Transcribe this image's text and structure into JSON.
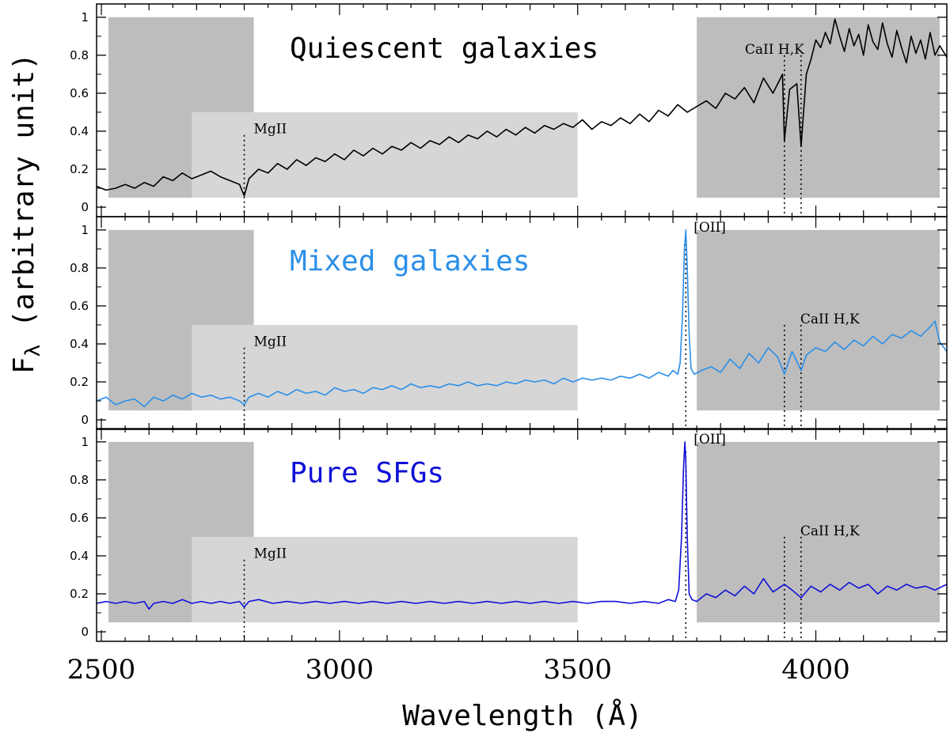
{
  "chart_data": {
    "type": "line",
    "xlabel": "Wavelength (Å)",
    "ylabel": "F",
    "ylabel_subscript": "λ",
    "ylabel_rest": " (arbitrary unit)",
    "xlim": [
      2490,
      4275
    ],
    "ylim": [
      -0.05,
      1.07
    ],
    "x_ticks": [
      2500,
      3000,
      3500,
      4000
    ],
    "x_tick_labels": [
      "2500",
      "3000",
      "3500",
      "4000"
    ],
    "y_ticks": [
      0,
      0.2,
      0.4,
      0.6,
      0.8,
      1
    ],
    "y_tick_labels": [
      "0",
      "0.2",
      "0.4",
      "0.6",
      "0.8",
      "1"
    ],
    "shaded_regions": [
      {
        "x0": 2515,
        "x1": 2820,
        "y0": 0.05,
        "y1": 1.0,
        "shade": "dark"
      },
      {
        "x0": 2690,
        "x1": 3500,
        "y0": 0.05,
        "y1": 0.5,
        "shade": "light"
      },
      {
        "x0": 3750,
        "x1": 4260,
        "y0": 0.05,
        "y1": 1.0,
        "shade": "dark"
      }
    ],
    "panels": [
      {
        "title": "Quiescent galaxies",
        "color": "#000000",
        "markers": [
          {
            "label": "MgII",
            "x": 2800,
            "y_top": 0.38
          },
          {
            "label": "CaII H,K",
            "x": 3934,
            "y_top": 0.8
          },
          {
            "label": "",
            "x": 3969,
            "y_top": 0.8
          }
        ],
        "series": {
          "name": "Quiescent galaxies",
          "x": [
            2490,
            2510,
            2530,
            2550,
            2570,
            2590,
            2610,
            2630,
            2650,
            2670,
            2690,
            2710,
            2730,
            2750,
            2770,
            2790,
            2800,
            2810,
            2830,
            2850,
            2870,
            2890,
            2910,
            2930,
            2950,
            2970,
            2990,
            3010,
            3030,
            3050,
            3070,
            3090,
            3110,
            3130,
            3150,
            3170,
            3190,
            3210,
            3230,
            3250,
            3270,
            3290,
            3310,
            3330,
            3350,
            3370,
            3390,
            3410,
            3430,
            3450,
            3470,
            3490,
            3510,
            3530,
            3550,
            3570,
            3590,
            3610,
            3630,
            3650,
            3670,
            3690,
            3710,
            3730,
            3750,
            3770,
            3790,
            3810,
            3830,
            3850,
            3870,
            3890,
            3910,
            3930,
            3934,
            3945,
            3960,
            3969,
            3980,
            3990,
            4000,
            4010,
            4020,
            4030,
            4040,
            4050,
            4060,
            4070,
            4080,
            4090,
            4100,
            4110,
            4120,
            4130,
            4140,
            4150,
            4160,
            4170,
            4180,
            4190,
            4200,
            4210,
            4220,
            4230,
            4240,
            4250,
            4260,
            4275
          ],
          "y": [
            0.11,
            0.09,
            0.1,
            0.12,
            0.1,
            0.13,
            0.11,
            0.16,
            0.14,
            0.18,
            0.15,
            0.17,
            0.19,
            0.16,
            0.14,
            0.12,
            0.06,
            0.15,
            0.2,
            0.18,
            0.23,
            0.2,
            0.25,
            0.22,
            0.26,
            0.24,
            0.28,
            0.25,
            0.3,
            0.27,
            0.31,
            0.28,
            0.32,
            0.3,
            0.34,
            0.31,
            0.35,
            0.33,
            0.37,
            0.34,
            0.38,
            0.36,
            0.4,
            0.37,
            0.41,
            0.38,
            0.42,
            0.39,
            0.43,
            0.41,
            0.44,
            0.42,
            0.46,
            0.41,
            0.45,
            0.43,
            0.47,
            0.44,
            0.49,
            0.45,
            0.51,
            0.48,
            0.54,
            0.5,
            0.53,
            0.56,
            0.52,
            0.6,
            0.57,
            0.63,
            0.55,
            0.68,
            0.6,
            0.7,
            0.35,
            0.62,
            0.65,
            0.32,
            0.7,
            0.78,
            0.88,
            0.84,
            0.92,
            0.86,
            0.99,
            0.9,
            0.82,
            0.94,
            0.85,
            0.91,
            0.8,
            0.96,
            0.87,
            0.83,
            0.97,
            0.86,
            0.79,
            0.93,
            0.84,
            0.76,
            0.9,
            0.81,
            0.88,
            0.78,
            0.92,
            0.8,
            0.85,
            0.79
          ]
        }
      },
      {
        "title": "Mixed galaxies",
        "color": "#2b8fe8",
        "markers": [
          {
            "label": "MgII",
            "x": 2800,
            "y_top": 0.38
          },
          {
            "label": "[OII]",
            "x": 3727,
            "y_top": 0.95
          },
          {
            "label": "CaII H,K",
            "x": 3934,
            "y_top": 0.5
          },
          {
            "label": "",
            "x": 3969,
            "y_top": 0.5
          }
        ],
        "series": {
          "name": "Mixed galaxies",
          "x": [
            2490,
            2510,
            2530,
            2550,
            2570,
            2590,
            2610,
            2630,
            2650,
            2670,
            2690,
            2710,
            2730,
            2750,
            2770,
            2790,
            2800,
            2810,
            2830,
            2850,
            2870,
            2890,
            2910,
            2930,
            2950,
            2970,
            2990,
            3010,
            3030,
            3050,
            3070,
            3090,
            3110,
            3130,
            3150,
            3170,
            3190,
            3210,
            3230,
            3250,
            3270,
            3290,
            3310,
            3330,
            3350,
            3370,
            3390,
            3410,
            3430,
            3450,
            3470,
            3490,
            3510,
            3530,
            3550,
            3570,
            3590,
            3610,
            3630,
            3650,
            3670,
            3690,
            3700,
            3710,
            3715,
            3720,
            3724,
            3727,
            3730,
            3734,
            3738,
            3745,
            3760,
            3780,
            3800,
            3820,
            3840,
            3860,
            3880,
            3900,
            3920,
            3934,
            3950,
            3969,
            3980,
            4000,
            4020,
            4040,
            4060,
            4080,
            4100,
            4120,
            4140,
            4160,
            4180,
            4200,
            4220,
            4240,
            4250,
            4260,
            4275
          ],
          "y": [
            0.1,
            0.12,
            0.08,
            0.1,
            0.11,
            0.07,
            0.12,
            0.1,
            0.13,
            0.11,
            0.14,
            0.12,
            0.13,
            0.11,
            0.12,
            0.1,
            0.08,
            0.12,
            0.14,
            0.12,
            0.15,
            0.13,
            0.16,
            0.14,
            0.15,
            0.13,
            0.17,
            0.15,
            0.16,
            0.14,
            0.17,
            0.16,
            0.18,
            0.16,
            0.19,
            0.17,
            0.18,
            0.17,
            0.19,
            0.18,
            0.2,
            0.18,
            0.19,
            0.18,
            0.2,
            0.19,
            0.21,
            0.2,
            0.21,
            0.19,
            0.22,
            0.2,
            0.22,
            0.21,
            0.22,
            0.21,
            0.23,
            0.22,
            0.24,
            0.22,
            0.25,
            0.23,
            0.26,
            0.24,
            0.3,
            0.55,
            0.9,
            1.0,
            0.8,
            0.45,
            0.27,
            0.24,
            0.26,
            0.28,
            0.25,
            0.32,
            0.27,
            0.35,
            0.3,
            0.38,
            0.33,
            0.24,
            0.36,
            0.26,
            0.34,
            0.38,
            0.36,
            0.41,
            0.37,
            0.42,
            0.39,
            0.44,
            0.4,
            0.45,
            0.43,
            0.47,
            0.44,
            0.49,
            0.52,
            0.41,
            0.36
          ]
        }
      },
      {
        "title": "Pure SFGs",
        "color": "#1010d8",
        "markers": [
          {
            "label": "MgII",
            "x": 2800,
            "y_top": 0.38
          },
          {
            "label": "[OII]",
            "x": 3727,
            "y_top": 0.95
          },
          {
            "label": "CaII H,K",
            "x": 3934,
            "y_top": 0.5
          },
          {
            "label": "",
            "x": 3969,
            "y_top": 0.5
          }
        ],
        "series": {
          "name": "Pure SFGs",
          "x": [
            2490,
            2510,
            2530,
            2550,
            2570,
            2590,
            2600,
            2610,
            2630,
            2650,
            2670,
            2690,
            2710,
            2730,
            2750,
            2770,
            2790,
            2800,
            2810,
            2830,
            2860,
            2890,
            2920,
            2950,
            2980,
            3010,
            3040,
            3070,
            3100,
            3130,
            3160,
            3190,
            3220,
            3250,
            3280,
            3310,
            3340,
            3370,
            3400,
            3430,
            3460,
            3490,
            3520,
            3550,
            3580,
            3610,
            3640,
            3670,
            3690,
            3705,
            3712,
            3718,
            3722,
            3725,
            3727,
            3730,
            3734,
            3740,
            3750,
            3770,
            3790,
            3810,
            3830,
            3850,
            3870,
            3890,
            3910,
            3934,
            3950,
            3969,
            3990,
            4010,
            4030,
            4050,
            4070,
            4090,
            4110,
            4130,
            4150,
            4170,
            4190,
            4210,
            4230,
            4250,
            4275
          ],
          "y": [
            0.15,
            0.16,
            0.15,
            0.16,
            0.15,
            0.16,
            0.12,
            0.15,
            0.16,
            0.15,
            0.17,
            0.15,
            0.16,
            0.15,
            0.16,
            0.15,
            0.16,
            0.13,
            0.16,
            0.17,
            0.15,
            0.16,
            0.15,
            0.16,
            0.15,
            0.16,
            0.15,
            0.16,
            0.15,
            0.16,
            0.15,
            0.16,
            0.15,
            0.16,
            0.15,
            0.16,
            0.15,
            0.16,
            0.15,
            0.16,
            0.15,
            0.16,
            0.15,
            0.16,
            0.16,
            0.15,
            0.16,
            0.15,
            0.17,
            0.16,
            0.22,
            0.5,
            0.85,
            1.0,
            0.9,
            0.5,
            0.2,
            0.17,
            0.16,
            0.2,
            0.18,
            0.22,
            0.19,
            0.24,
            0.2,
            0.28,
            0.21,
            0.25,
            0.22,
            0.18,
            0.24,
            0.21,
            0.25,
            0.22,
            0.26,
            0.23,
            0.25,
            0.2,
            0.24,
            0.22,
            0.25,
            0.23,
            0.24,
            0.22,
            0.25
          ]
        }
      }
    ]
  },
  "colors": {
    "shade_dark": "#bdbdbd",
    "shade_light": "#d6d6d6",
    "axis": "#000000"
  }
}
